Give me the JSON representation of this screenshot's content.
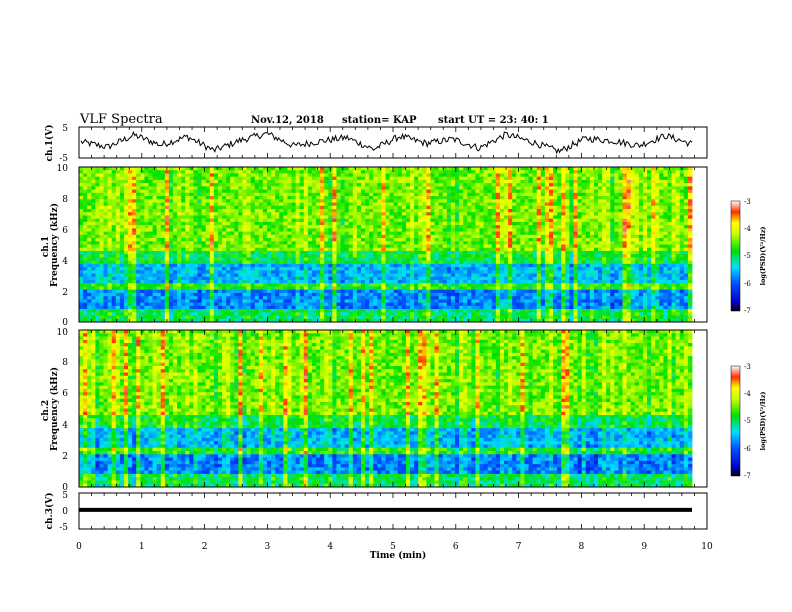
{
  "header": {
    "title": "VLF Spectra",
    "date": "Nov.12, 2018",
    "station": "station= KAP",
    "start_time": "start  UT =   23: 40: 1"
  },
  "chart_data": [
    {
      "type": "line",
      "ylabel": "ch.1(V)",
      "ylim": [
        -5,
        5
      ],
      "yticks": [
        "5",
        "-5"
      ],
      "xlim": [
        0,
        10
      ],
      "series": [
        {
          "values": [
            0.2,
            -1.5,
            2.4,
            -0.8,
            1.9,
            -2.6,
            0.7,
            2.9,
            -1.1,
            0.4,
            1.6,
            -2.2,
            2.0,
            -0.3,
            1.1,
            -1.8,
            2.6,
            0.1,
            -2.9,
            1.3,
            0.6,
            -1.0,
            2.2,
            -0.5
          ]
        }
      ]
    },
    {
      "type": "heatmap",
      "ylabel": "ch.1\nFrequency (kHz)",
      "ylim": [
        0,
        10
      ],
      "yticks": [
        "0",
        "2",
        "4",
        "6",
        "8",
        "10"
      ],
      "xlim": [
        0,
        10
      ],
      "colorbar": {
        "label": "log(PSD)(V²/Hz)",
        "range": [
          -7,
          -3
        ],
        "ticks": [
          "-3",
          "-4",
          "-5",
          "-6",
          "-7"
        ]
      }
    },
    {
      "type": "heatmap",
      "ylabel": "ch.2\nFrequency (kHz)",
      "ylim": [
        0,
        10
      ],
      "yticks": [
        "0",
        "2",
        "4",
        "6",
        "8",
        "10"
      ],
      "xlim": [
        0,
        10
      ],
      "colorbar": {
        "label": "log(PSD)(V²/Hz)",
        "range": [
          -7,
          -3
        ],
        "ticks": [
          "-3",
          "-4",
          "-5",
          "-6",
          "-7"
        ]
      }
    },
    {
      "type": "line",
      "ylabel": "ch.3(V)",
      "ylim": [
        -5,
        5
      ],
      "yticks": [
        "5",
        "0",
        "-5"
      ],
      "xlim": [
        0,
        10
      ],
      "xlabel": "Time (min)",
      "xticks": [
        "0",
        "1",
        "2",
        "3",
        "4",
        "5",
        "6",
        "7",
        "8",
        "9",
        "10"
      ],
      "series": [
        {
          "values": [
            0.3,
            0.3
          ]
        }
      ]
    }
  ]
}
